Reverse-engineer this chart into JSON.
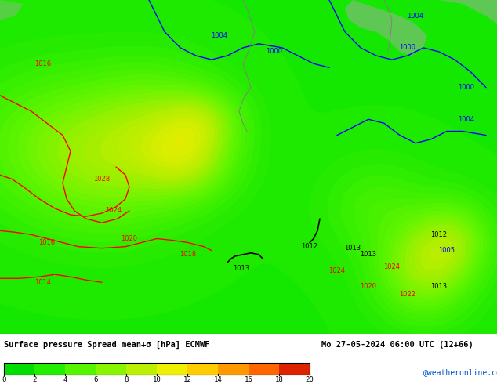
{
  "title_left": "Surface pressure Spread mean+σ [hPa] ECMWF",
  "title_right": "Mo 27-05-2024 06:00 UTC (12+66)",
  "credit": "@weatheronline.co.uk",
  "colorbar_values": [
    0,
    2,
    4,
    6,
    8,
    10,
    12,
    14,
    16,
    18,
    20
  ],
  "colorbar_colors": [
    "#00e400",
    "#33ee00",
    "#66f700",
    "#99f700",
    "#ccf200",
    "#ffee00",
    "#ffcc00",
    "#ff9900",
    "#ff6600",
    "#ee2200",
    "#cc0011"
  ],
  "bg_color": "#32cd32",
  "map_bg": "#32cd32",
  "figure_bg": "#ffffff",
  "bottom_bar_color": "#e8e8e8",
  "figsize": [
    6.34,
    4.9
  ],
  "dpi": 100
}
